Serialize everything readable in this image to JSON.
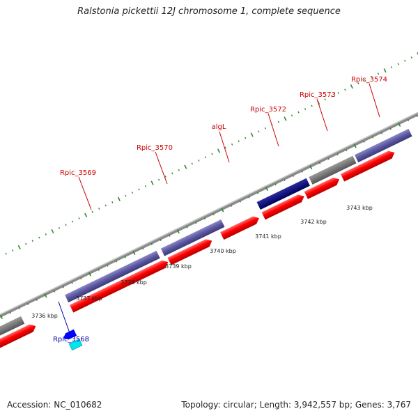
{
  "title": "Ralstonia pickettii 12J chromosome 1, complete sequence",
  "footer": {
    "accession": "Accession: NC_010682",
    "summary": "Topology: circular; Length: 3,942,557 bp; Genes: 3,767"
  },
  "scale_labels": [
    "3736 kbp",
    "3737 kbp",
    "3738 kbp",
    "3739 kbp",
    "3740 kbp",
    "3741 kbp",
    "3742 kbp",
    "3743 kbp"
  ],
  "genes": [
    {
      "label": "Rpic_3568",
      "color": "#0000aa"
    },
    {
      "label": "Rpic_3569",
      "color": "#cc0000"
    },
    {
      "label": "Rpic_3570",
      "color": "#cc0000"
    },
    {
      "label": "algL",
      "color": "#cc0000"
    },
    {
      "label": "Rpic_3572",
      "color": "#cc0000"
    },
    {
      "label": "Rpic_3573",
      "color": "#cc0000"
    },
    {
      "label": "Rpic_3574",
      "color": "#cc0000"
    }
  ],
  "colors": {
    "backbone": "#8a8a8a",
    "cds_forward": "#ff0000",
    "cds_reverse": "#0000ff",
    "rrna": "#00e5ee",
    "blast_hit": "#5a55a0",
    "blast_hit_dark": "#00007a",
    "blast_gray": "#707070",
    "tick": "#2a8a2a"
  }
}
